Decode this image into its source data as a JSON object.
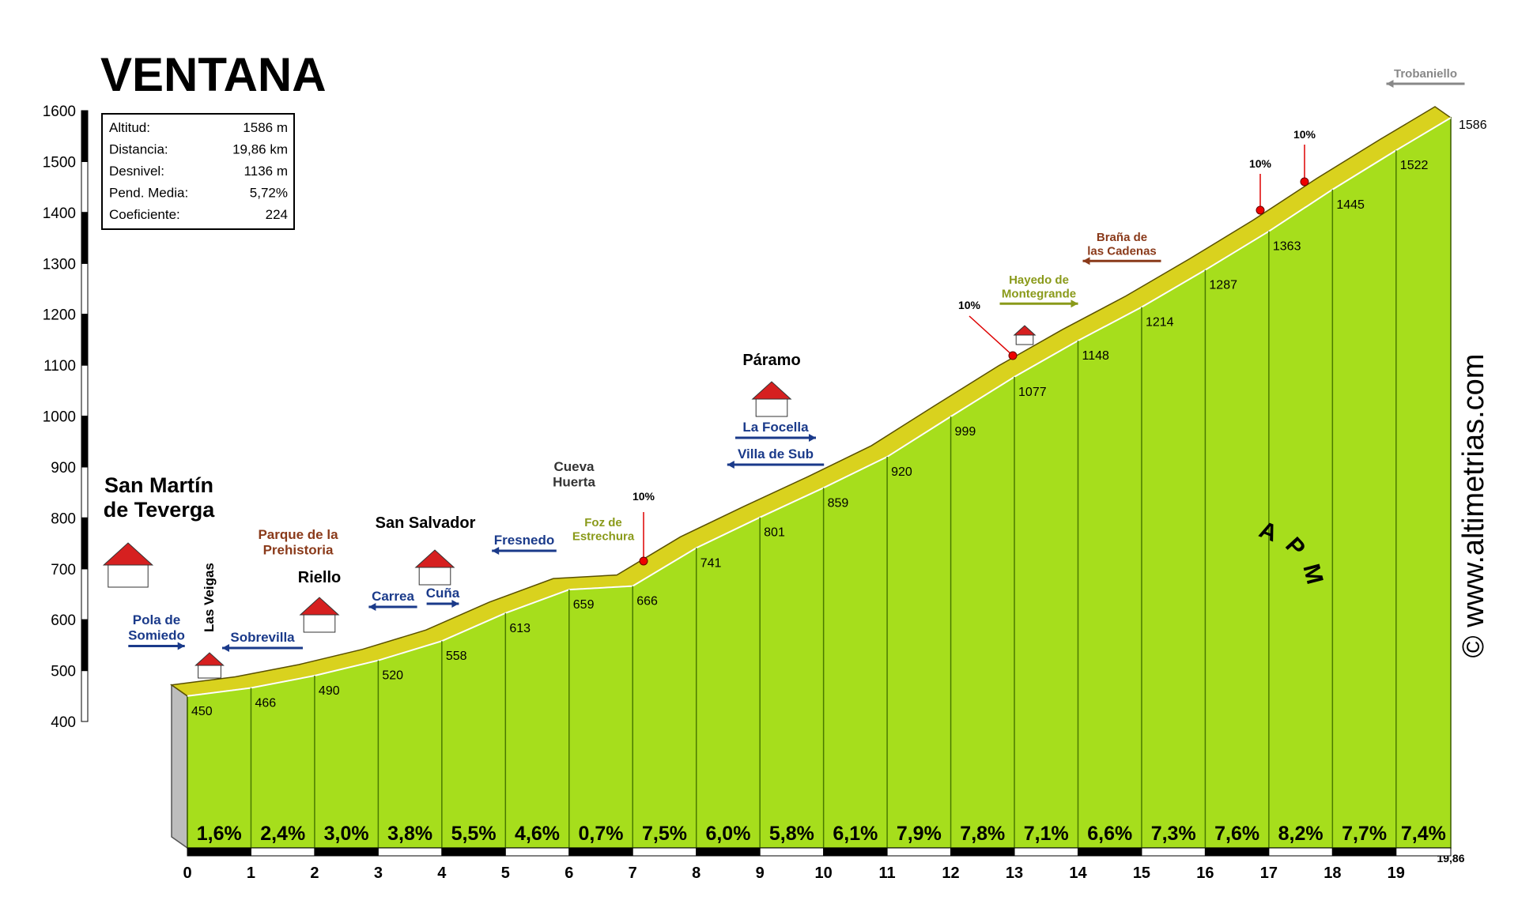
{
  "chart_data": {
    "type": "profile",
    "title": "VENTANA",
    "x": [
      0,
      1,
      2,
      3,
      4,
      5,
      6,
      7,
      8,
      9,
      10,
      11,
      12,
      13,
      14,
      15,
      16,
      17,
      18,
      19,
      19.86
    ],
    "values": [
      450,
      466,
      490,
      520,
      558,
      613,
      659,
      666,
      741,
      801,
      859,
      920,
      999,
      1077,
      1148,
      1214,
      1287,
      1363,
      1445,
      1522,
      1586
    ],
    "gradient": {
      "values": [
        1.6,
        2.4,
        3.0,
        3.8,
        5.5,
        4.6,
        0.7,
        7.5,
        6.0,
        5.8,
        6.1,
        7.9,
        7.8,
        7.1,
        6.6,
        7.3,
        7.6,
        8.2,
        7.7,
        7.4
      ],
      "value_labels": [
        "1,6%",
        "2,4%",
        "3,0%",
        "3,8%",
        "5,5%",
        "4,6%",
        "0,7%",
        "7,5%",
        "6,0%",
        "5,8%",
        "6,1%",
        "7,9%",
        "7,8%",
        "7,1%",
        "6,6%",
        "7,3%",
        "7,6%",
        "8,2%",
        "7,7%",
        "7,4%"
      ]
    },
    "color": "#a6de1c",
    "band_color": "#d9d21e",
    "xlim": [
      0,
      19.86
    ],
    "xticks": [
      0,
      1,
      2,
      3,
      4,
      5,
      6,
      7,
      8,
      9,
      10,
      11,
      12,
      13,
      14,
      15,
      16,
      17,
      18,
      19,
      {
        "value": 19.86,
        "label": "19,86"
      }
    ],
    "ylim": [
      400,
      1600
    ],
    "yticks": [
      400,
      500,
      600,
      700,
      800,
      900,
      1000,
      1100,
      1200,
      1300,
      1400,
      1500,
      1600
    ],
    "info": [
      {
        "label": "Altitud:",
        "value": "1586 m"
      },
      {
        "label": "Distancia:",
        "value": "19,86 km"
      },
      {
        "label": "Desnivel:",
        "value": "1136 m"
      },
      {
        "label": "Pend. Media:",
        "value": "5,72%"
      },
      {
        "label": "Coeficiente:",
        "value": "224"
      }
    ],
    "annotations": [
      {
        "lines": [
          "San Martín",
          "de Teverga"
        ],
        "color": "#000000"
      },
      {
        "lines": [
          "Pola de",
          "Somiedo"
        ],
        "color": "#1a3a8a"
      },
      {
        "text": "Las Veigas",
        "color": "#000000"
      },
      {
        "text": "Sobrevilla",
        "color": "#1a3a8a"
      },
      {
        "text": "Riello",
        "color": "#000000"
      },
      {
        "lines": [
          "Parque de la",
          "Prehistoria"
        ],
        "color": "#8a3a1a"
      },
      {
        "text": "San Salvador",
        "color": "#000000"
      },
      {
        "text": "Carrea",
        "color": "#1a3a8a"
      },
      {
        "text": "Cuña",
        "color": "#1a3a8a"
      },
      {
        "text": "Fresnedo",
        "color": "#1a3a8a"
      },
      {
        "lines": [
          "Cueva",
          "Huerta"
        ],
        "color": "#333333"
      },
      {
        "lines": [
          "Foz de",
          "Estrechura"
        ],
        "color": "#8a9a1a"
      },
      {
        "text": "Páramo",
        "color": "#000000"
      },
      {
        "text": "La Focella",
        "color": "#1a3a8a"
      },
      {
        "text": "Villa de Sub",
        "color": "#1a3a8a"
      },
      {
        "lines": [
          "Hayedo de",
          "Montegrande"
        ],
        "color": "#8a9a1a"
      },
      {
        "lines": [
          "Braña de",
          "las Cadenas"
        ],
        "color": "#8a3a1a"
      },
      {
        "text": "Trobaniello",
        "color": "#888888"
      },
      {
        "text": "10%",
        "color": "#000000"
      },
      {
        "text": "10%",
        "color": "#000000"
      },
      {
        "text": "10%",
        "color": "#000000"
      },
      {
        "text": "10%",
        "color": "#000000"
      },
      {
        "text": "© www.altimetrias.com",
        "color": "#000000"
      },
      {
        "text": "APM",
        "color": "#000000"
      }
    ]
  }
}
